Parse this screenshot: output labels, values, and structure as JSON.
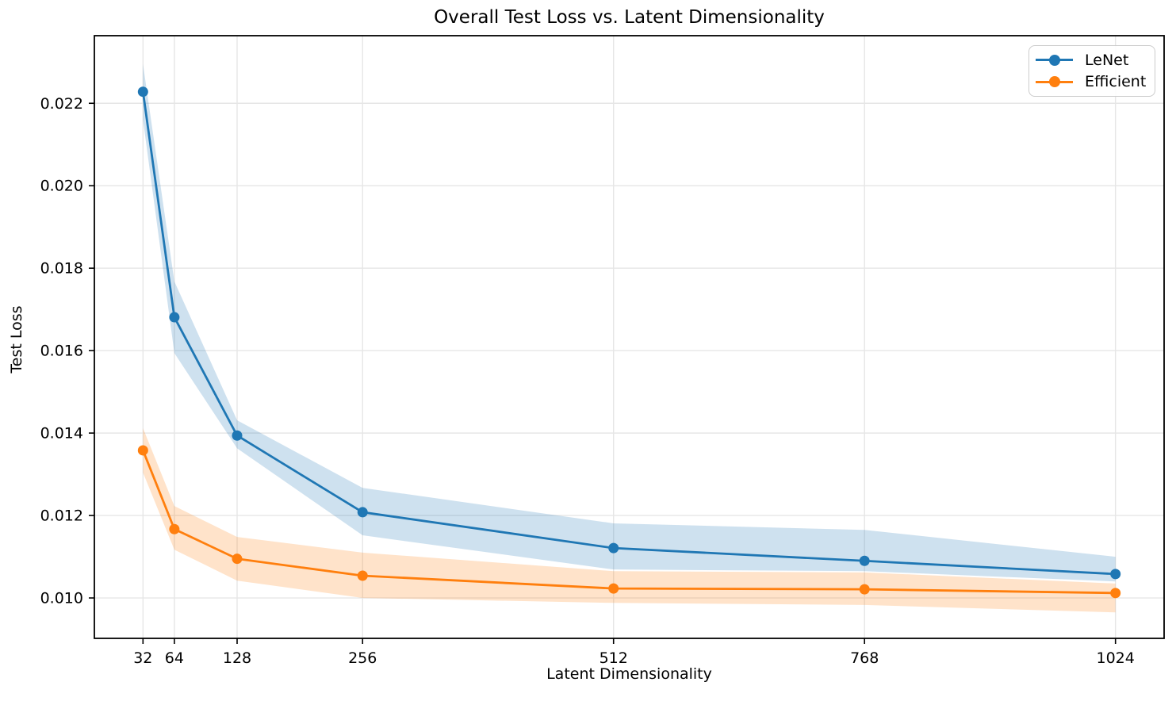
{
  "chart_data": {
    "type": "line",
    "title": "Overall Test Loss vs. Latent Dimensionality",
    "xlabel": "Latent Dimensionality",
    "ylabel": "Test Loss",
    "x": [
      32,
      64,
      128,
      256,
      512,
      768,
      1024
    ],
    "xtick_labels": [
      "32",
      "64",
      "128",
      "256",
      "512",
      "768",
      "1024"
    ],
    "yticks": [
      0.01,
      0.012,
      0.014,
      0.016,
      0.018,
      0.02,
      0.022
    ],
    "ytick_labels": [
      "0.010",
      "0.012",
      "0.014",
      "0.016",
      "0.018",
      "0.020",
      "0.022"
    ],
    "xlim": [
      -17.6,
      1073.6
    ],
    "ylim": [
      0.00902,
      0.02364
    ],
    "grid": true,
    "grid_color": "#e6e6e6",
    "axis_color": "#000000",
    "background_color": "#ffffff",
    "band_alpha": 0.22,
    "legend_position": "upper right",
    "series": [
      {
        "name": "LeNet",
        "color": "#1f77b4",
        "values": [
          0.02228,
          0.01681,
          0.01394,
          0.01208,
          0.01121,
          0.0109,
          0.01058
        ],
        "band_upper": [
          0.02295,
          0.01768,
          0.01431,
          0.01267,
          0.01181,
          0.01165,
          0.011
        ],
        "band_lower": [
          0.0216,
          0.01594,
          0.01363,
          0.01152,
          0.01069,
          0.01065,
          0.0104
        ]
      },
      {
        "name": "Efficient",
        "color": "#ff7f0e",
        "values": [
          0.01358,
          0.01167,
          0.01095,
          0.01054,
          0.01023,
          0.01021,
          0.01012
        ],
        "band_upper": [
          0.01412,
          0.01223,
          0.01148,
          0.0111,
          0.01065,
          0.01062,
          0.01035
        ],
        "band_lower": [
          0.01304,
          0.01117,
          0.01042,
          0.01,
          0.00988,
          0.00983,
          0.00965
        ]
      }
    ]
  }
}
